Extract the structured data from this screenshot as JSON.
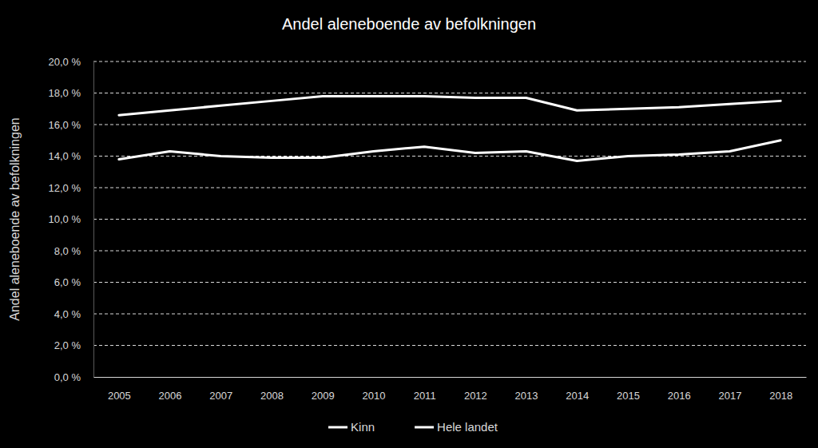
{
  "chart_data": {
    "type": "line",
    "title": "Andel aleneboende av befolkningen",
    "y_label": "Andel aleneboende av befolkningen",
    "categories": [
      "2005",
      "2006",
      "2007",
      "2008",
      "2009",
      "2010",
      "2011",
      "2012",
      "2013",
      "2014",
      "2015",
      "2016",
      "2017",
      "2018"
    ],
    "series": [
      {
        "name": "Kinn",
        "color": "#ffffff",
        "values": [
          13.8,
          14.3,
          14.0,
          13.9,
          13.9,
          14.3,
          14.6,
          14.2,
          14.3,
          13.7,
          14.0,
          14.1,
          14.3,
          15.0
        ]
      },
      {
        "name": "Hele landet",
        "color": "#ffffff",
        "values": [
          16.6,
          16.9,
          17.2,
          17.5,
          17.8,
          17.8,
          17.8,
          17.7,
          17.7,
          16.9,
          17.0,
          17.1,
          17.3,
          17.5
        ]
      }
    ],
    "ylim": [
      0,
      20
    ],
    "yticks": [
      {
        "value": 0,
        "label": "0,0 %"
      },
      {
        "value": 2,
        "label": "2,0 %"
      },
      {
        "value": 4,
        "label": "4,0 %"
      },
      {
        "value": 6,
        "label": "6,0 %"
      },
      {
        "value": 8,
        "label": "8,0 %"
      },
      {
        "value": 10,
        "label": "10,0 %"
      },
      {
        "value": 12,
        "label": "12,0 %"
      },
      {
        "value": 14,
        "label": "14,0 %"
      },
      {
        "value": 16,
        "label": "16,0 %"
      },
      {
        "value": 18,
        "label": "18,0 %"
      },
      {
        "value": 20,
        "label": "20,0 %"
      }
    ],
    "grid": true,
    "legend": "bottom"
  }
}
